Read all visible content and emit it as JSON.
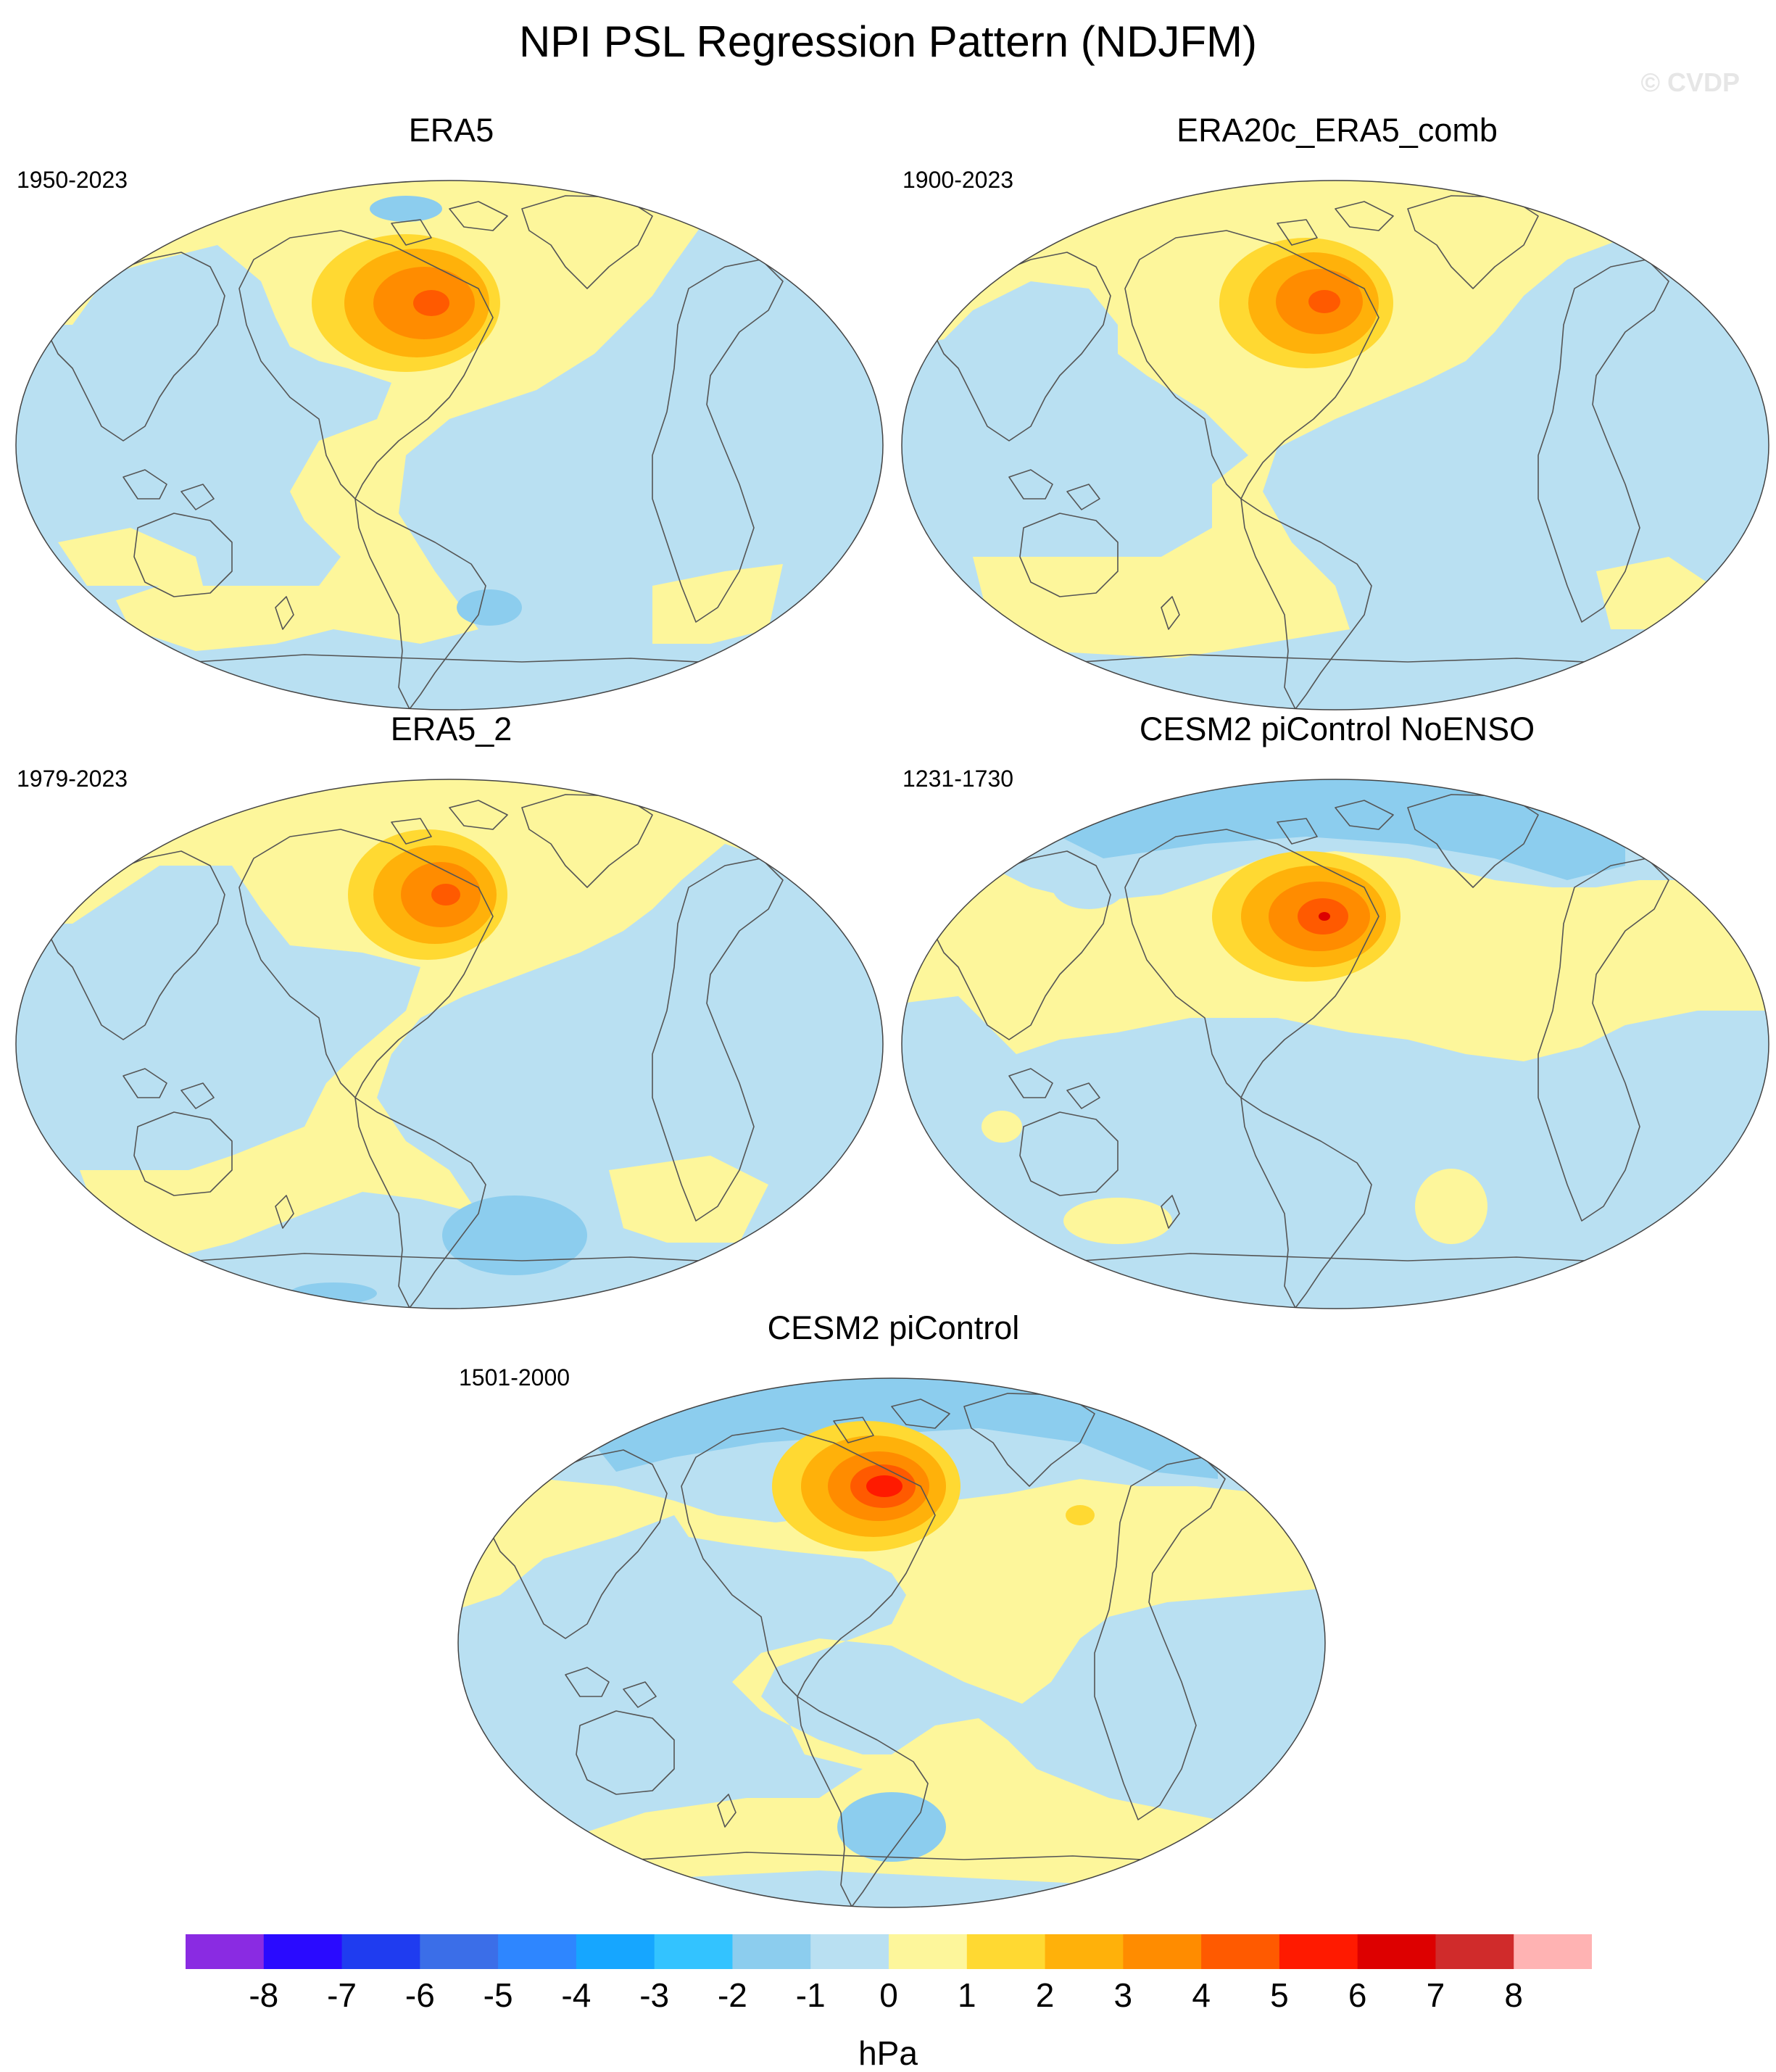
{
  "title": "NPI PSL Regression Pattern (NDJFM)",
  "watermark": "© CVDP",
  "panels": [
    {
      "id": "era5",
      "title": "ERA5",
      "period": "1950-2023"
    },
    {
      "id": "era20c",
      "title": "ERA20c_ERA5_comb",
      "period": "1900-2023"
    },
    {
      "id": "era5_2",
      "title": "ERA5_2",
      "period": "1979-2023"
    },
    {
      "id": "cesm2_noenso",
      "title": "CESM2 piControl NoENSO",
      "period": "1231-1730"
    },
    {
      "id": "cesm2",
      "title": "CESM2 piControl",
      "period": "1501-2000"
    }
  ],
  "colorbar": {
    "unit": "hPa",
    "labels": [
      "-8",
      "-7",
      "-6",
      "-5",
      "-4",
      "-3",
      "-2",
      "-1",
      "0",
      "1",
      "2",
      "3",
      "4",
      "5",
      "6",
      "7",
      "8"
    ],
    "colors": [
      "#8a2be2",
      "#2a0aff",
      "#1f3cf0",
      "#3b6ee8",
      "#2e86ff",
      "#16a6ff",
      "#33c3ff",
      "#8ccdee",
      "#b9e0f2",
      "#fdf69b",
      "#ffd932",
      "#ffb10a",
      "#ff8c00",
      "#ff5a00",
      "#ff1a00",
      "#dd0000",
      "#d02b2b",
      "#ffb3b3"
    ]
  },
  "colors": {
    "ocean_base": "#b9e0f2",
    "positive_1": "#fdf69b",
    "negative_2": "#8ccdee"
  }
}
